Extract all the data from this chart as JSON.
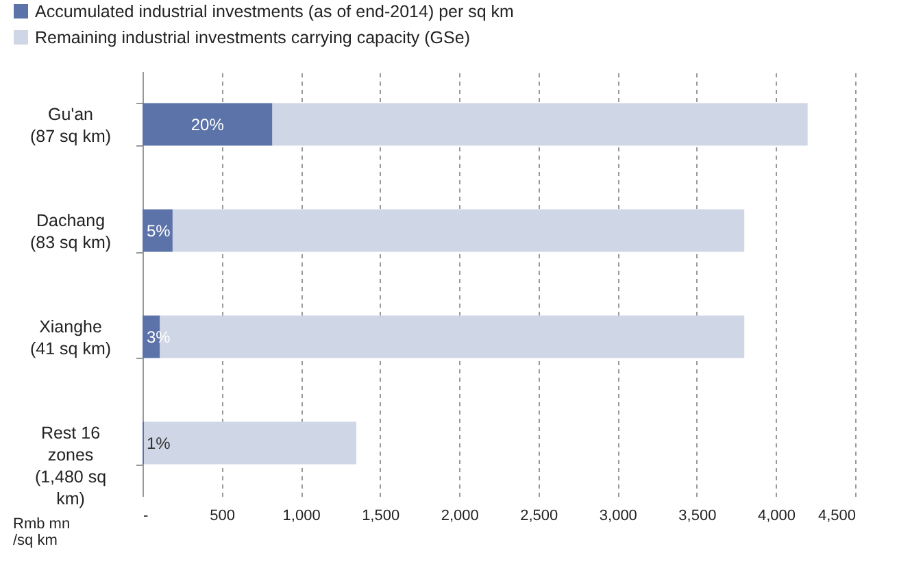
{
  "chart_data": {
    "type": "bar",
    "orientation": "horizontal",
    "stacked": true,
    "categories": [
      "Gu'an\n(87 sq km)",
      "Dachang\n(83 sq km)",
      "Xianghe\n(41 sq km)",
      "Rest 16\nzones\n(1,480 sq\nkm)"
    ],
    "series": [
      {
        "name": "Accumulated industrial investments (as of end-2014) per sq km",
        "color": "#5b73a8",
        "values": [
          820,
          190,
          110,
          10
        ]
      },
      {
        "name": "Remaining industrial investments carrying capacity (GSe)",
        "color": "#cfd6e5",
        "values": [
          3380,
          3610,
          3690,
          1340
        ]
      }
    ],
    "annotations": [
      "20%",
      "5%",
      "3%",
      "1%"
    ],
    "xlabel": "Rmb mn\n/sq km",
    "xlim": [
      0,
      4500
    ],
    "xticks": [
      {
        "value": 0,
        "label": "-"
      },
      500,
      {
        "value": 1000,
        "label": "1,000"
      },
      {
        "value": 1500,
        "label": "1,500"
      },
      {
        "value": 2000,
        "label": "2,000"
      },
      {
        "value": 2500,
        "label": "2,500"
      },
      {
        "value": 3000,
        "label": "3,000"
      },
      {
        "value": 3500,
        "label": "3,500"
      },
      {
        "value": 4000,
        "label": "4,000"
      },
      {
        "value": 4500,
        "label": "4,500"
      }
    ],
    "grid": "x",
    "legend": "top"
  }
}
